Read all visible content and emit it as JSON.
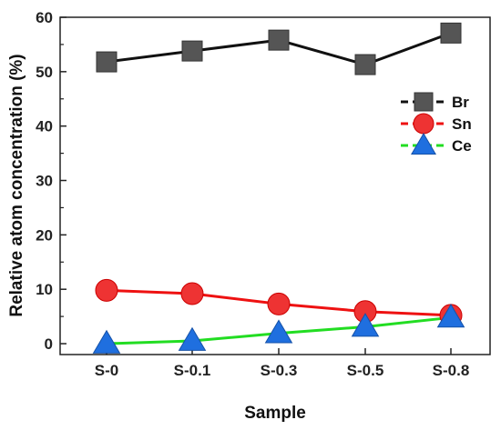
{
  "chart_data": {
    "type": "line",
    "categories": [
      "S-0",
      "S-0.1",
      "S-0.3",
      "S-0.5",
      "S-0.8"
    ],
    "series": [
      {
        "name": "Br",
        "values": [
          51.8,
          53.8,
          55.8,
          51.3,
          57.1
        ],
        "color": "#111111",
        "marker_color": "#555555",
        "marker": "square"
      },
      {
        "name": "Sn",
        "values": [
          9.8,
          9.2,
          7.3,
          5.9,
          5.2
        ],
        "color": "#ee1111",
        "marker_color": "#ee3333",
        "marker": "circle"
      },
      {
        "name": "Ce",
        "values": [
          0.0,
          0.5,
          1.9,
          3.1,
          4.8
        ],
        "color": "#22dd22",
        "marker_color": "#1f6fdf",
        "marker": "triangle"
      }
    ],
    "xlabel": "Sample",
    "ylabel": "Relative atom concentration (%)",
    "ylim": [
      -2,
      60
    ],
    "yticks": [
      "0",
      "10",
      "20",
      "30",
      "40",
      "50",
      "60"
    ],
    "grid": false,
    "legend_position": "right"
  }
}
